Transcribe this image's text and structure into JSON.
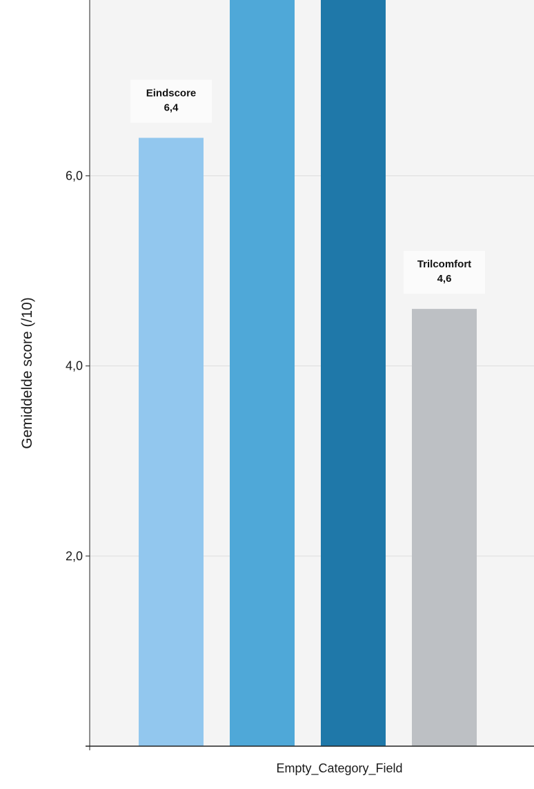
{
  "chart_data": {
    "type": "bar",
    "categories": [
      "Empty_Category_Field"
    ],
    "xlabel": "Empty_Category_Field",
    "ylabel": "Gemiddelde score (/10)",
    "ylim": [
      0,
      7.85
    ],
    "yticks": [
      {
        "value": 2,
        "label": "2,0"
      },
      {
        "value": 4,
        "label": "4,0"
      },
      {
        "value": 6,
        "label": "6,0"
      }
    ],
    "grid": true,
    "series": [
      {
        "name": "Eindscore",
        "values": [
          6.4
        ],
        "color": "#92c7ee",
        "label_text": "6,4",
        "show_label": true
      },
      {
        "name": "",
        "values": [
          7.85
        ],
        "color": "#4fa8d8",
        "label_text": "",
        "show_label": false
      },
      {
        "name": "",
        "values": [
          7.85
        ],
        "color": "#1f78a9",
        "label_text": "",
        "show_label": false
      },
      {
        "name": "Trilcomfort",
        "values": [
          4.6
        ],
        "color": "#bdc0c4",
        "label_text": "4,6",
        "show_label": true
      }
    ],
    "colors": {
      "plot_background": "#f4f4f4",
      "gridline": "#dcdcdc",
      "axis": "#222222",
      "label_box": "#fbfbfb"
    }
  }
}
